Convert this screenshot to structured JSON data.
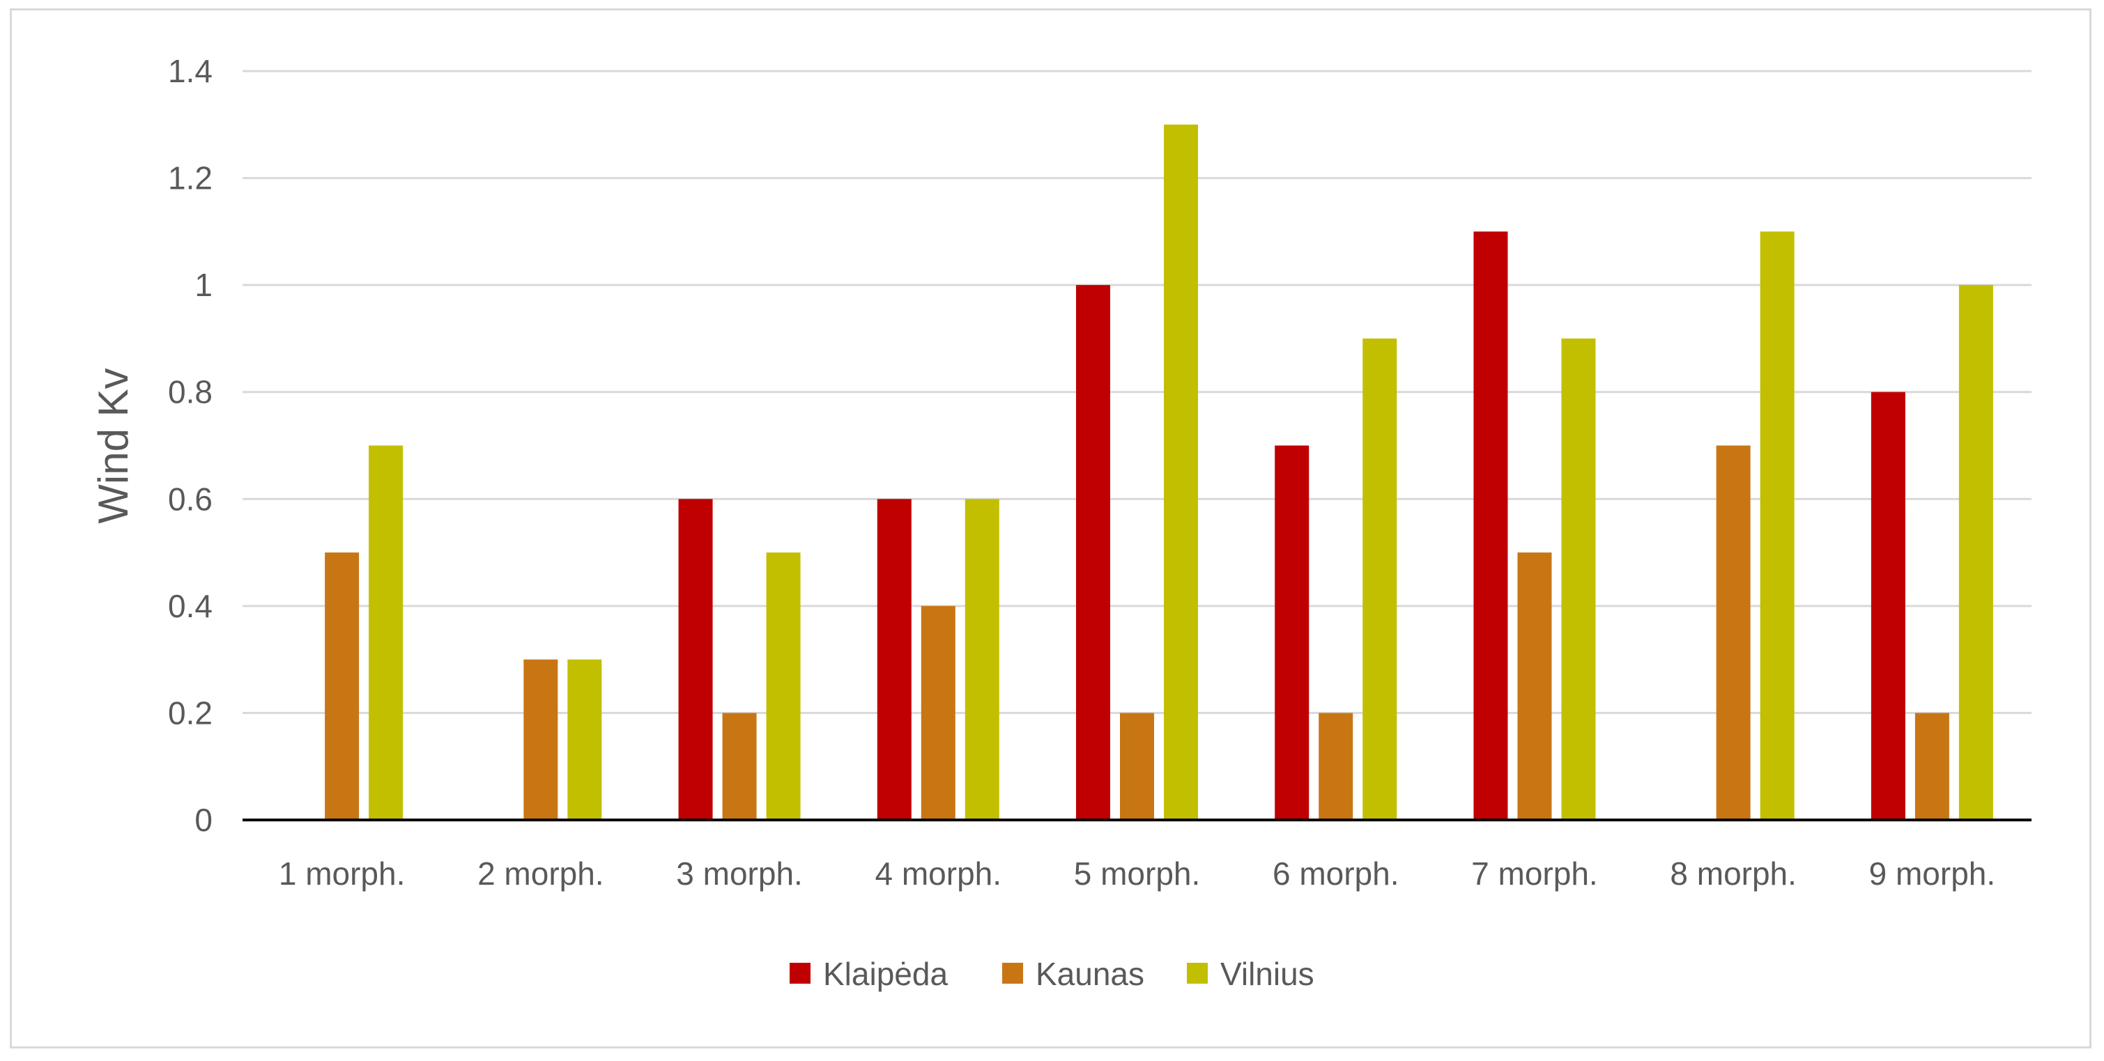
{
  "chart_data": {
    "type": "bar",
    "title": "",
    "xlabel": "",
    "ylabel": "Wind Kv",
    "ylim": [
      0,
      1.4
    ],
    "yticks": [
      "0",
      "0.2",
      "0.4",
      "0.6",
      "0.8",
      "1",
      "1.2",
      "1.4"
    ],
    "grid": true,
    "legend_position": "bottom",
    "categories": [
      "1 morph.",
      "2 morph.",
      "3 morph.",
      "4 morph.",
      "5 morph.",
      "6 morph.",
      "7 morph.",
      "8 morph.",
      "9 morph."
    ],
    "series": [
      {
        "name": "Klaipėda",
        "color": "#c00000",
        "values": [
          0,
          0,
          0.6,
          0.6,
          1.0,
          0.7,
          1.1,
          0,
          0.8
        ]
      },
      {
        "name": "Kaunas",
        "color": "#c87614",
        "values": [
          0.5,
          0.3,
          0.2,
          0.4,
          0.2,
          0.2,
          0.5,
          0.7,
          0.2
        ]
      },
      {
        "name": "Vilnius",
        "color": "#c2bf00",
        "values": [
          0.7,
          0.3,
          0.5,
          0.6,
          1.3,
          0.9,
          0.9,
          1.1,
          1.0
        ]
      }
    ]
  }
}
